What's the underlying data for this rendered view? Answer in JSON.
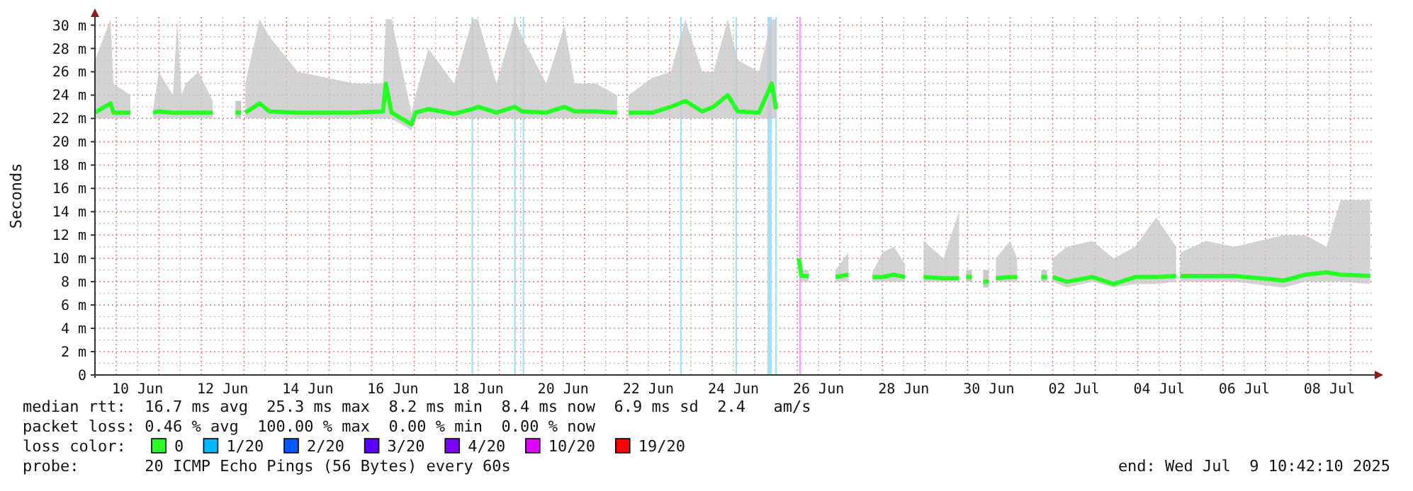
{
  "chart_data": {
    "type": "line",
    "ylabel": "Seconds",
    "legend_title": "loss color:",
    "legend": "bottom",
    "grid": true,
    "line_style": "solid",
    "marker": "none",
    "xlim": [
      "2025-06-09T12:00",
      "2025-07-09T12:00"
    ],
    "xticks": [
      {
        "value": "2025-06-10T12:00",
        "label": "10 Jun"
      },
      {
        "value": "2025-06-12T12:00",
        "label": "12 Jun"
      },
      {
        "value": "2025-06-14T12:00",
        "label": "14 Jun"
      },
      {
        "value": "2025-06-16T12:00",
        "label": "16 Jun"
      },
      {
        "value": "2025-06-18T12:00",
        "label": "18 Jun"
      },
      {
        "value": "2025-06-20T12:00",
        "label": "20 Jun"
      },
      {
        "value": "2025-06-22T12:00",
        "label": "22 Jun"
      },
      {
        "value": "2025-06-24T12:00",
        "label": "24 Jun"
      },
      {
        "value": "2025-06-26T12:00",
        "label": "26 Jun"
      },
      {
        "value": "2025-06-28T12:00",
        "label": "28 Jun"
      },
      {
        "value": "2025-06-30T12:00",
        "label": "30 Jun"
      },
      {
        "value": "2025-07-02T12:00",
        "label": "02 Jul"
      },
      {
        "value": "2025-07-04T12:00",
        "label": "04 Jul"
      },
      {
        "value": "2025-07-06T12:00",
        "label": "06 Jul"
      },
      {
        "value": "2025-07-08T12:00",
        "label": "08 Jul"
      }
    ],
    "ylim": [
      0,
      30.7
    ],
    "yticks": [
      0,
      {
        "value": 2,
        "label": "2 m"
      },
      {
        "value": 4,
        "label": "4 m"
      },
      {
        "value": 6,
        "label": "6 m"
      },
      {
        "value": 8,
        "label": "8 m"
      },
      {
        "value": 10,
        "label": "10 m"
      },
      {
        "value": 12,
        "label": "12 m"
      },
      {
        "value": 14,
        "label": "14 m"
      },
      {
        "value": 16,
        "label": "16 m"
      },
      {
        "value": 18,
        "label": "18 m"
      },
      {
        "value": 20,
        "label": "20 m"
      },
      {
        "value": 22,
        "label": "22 m"
      },
      {
        "value": 24,
        "label": "24 m"
      },
      {
        "value": 26,
        "label": "26 m"
      },
      {
        "value": 28,
        "label": "28 m"
      },
      {
        "value": 30,
        "label": "30 m"
      }
    ],
    "series": [
      {
        "name": "0",
        "color": "#26ff26",
        "x": [
          "2025-06-09T12:00",
          "2025-06-09T20:48",
          "2025-06-09T22:24",
          "2025-06-10T08:00",
          "2025-06-10T12:00",
          "2025-06-10T20:48",
          "2025-06-11T00:00",
          "2025-06-11T08:00",
          "2025-06-11T10:24",
          "2025-06-11T12:48",
          "2025-06-11T15:12",
          "2025-06-11T22:24",
          "2025-06-12T06:24",
          "2025-06-12T12:00",
          "2025-06-12T20:48",
          "2025-06-12T22:00",
          "2025-06-13T00:48",
          "2025-06-13T08:48",
          "2025-06-13T14:24",
          "2025-06-14T06:24",
          "2025-06-14T22:24",
          "2025-06-15T14:24",
          "2025-06-16T06:24",
          "2025-06-16T08:00",
          "2025-06-16T11:12",
          "2025-06-16T22:24",
          "2025-06-17T00:48",
          "2025-06-17T08:00",
          "2025-06-17T22:24",
          "2025-06-18T08:48",
          "2025-06-18T12:00",
          "2025-06-18T22:24",
          "2025-06-19T08:48",
          "2025-06-19T12:48",
          "2025-06-20T02:24",
          "2025-06-20T12:48",
          "2025-06-20T18:24",
          "2025-06-21T06:24",
          "2025-06-21T18:24",
          "2025-06-21T21:00",
          "2025-06-22T00:48",
          "2025-06-22T14:24",
          "2025-06-23T00:48",
          "2025-06-23T08:48",
          "2025-06-23T18:24",
          "2025-06-24T00:48",
          "2025-06-24T08:48",
          "2025-06-24T14:24",
          "2025-06-25T02:24",
          "2025-06-25T09:36",
          "2025-06-25T12:00",
          "2025-06-25T18:00",
          "2025-06-26T00:48",
          "2025-06-26T02:24",
          "2025-06-26T06:24",
          "2025-06-26T15:00",
          "2025-06-26T21:36",
          "2025-06-27T04:48",
          "2025-06-27T12:00",
          "2025-06-27T18:24",
          "2025-06-28T00:00",
          "2025-06-28T06:24",
          "2025-06-28T12:48",
          "2025-06-28T18:00",
          "2025-06-28T23:12",
          "2025-06-29T10:24",
          "2025-06-29T19:12",
          "2025-06-29T21:00",
          "2025-06-30T00:48",
          "2025-06-30T03:00",
          "2025-06-30T10:24",
          "2025-06-30T12:00",
          "2025-06-30T16:00",
          "2025-07-01T00:00",
          "2025-07-01T04:00",
          "2025-07-01T12:00",
          "2025-07-01T19:12",
          "2025-07-01T20:30",
          "2025-07-02T00:00",
          "2025-07-02T08:00",
          "2025-07-02T22:24",
          "2025-07-03T10:24",
          "2025-07-03T22:24",
          "2025-07-04T10:24",
          "2025-07-04T21:36",
          "2025-07-04T22:30",
          "2025-07-05T00:00",
          "2025-07-05T14:24",
          "2025-07-06T06:24",
          "2025-07-07T10:24",
          "2025-07-07T22:24",
          "2025-07-08T10:24",
          "2025-07-08T18:24",
          "2025-07-09T11:00"
        ],
        "values": [
          22.5,
          23.3,
          22.5,
          22.5,
          null,
          22.5,
          22.6,
          22.5,
          22.5,
          22.5,
          22.5,
          22.5,
          22.5,
          null,
          22.5,
          null,
          22.5,
          23.3,
          22.6,
          22.5,
          22.5,
          22.5,
          22.6,
          25,
          22.5,
          21.5,
          22.5,
          22.8,
          22.4,
          22.8,
          23,
          22.5,
          23,
          22.6,
          22.5,
          23,
          22.6,
          22.6,
          22.5,
          null,
          22.5,
          22.5,
          23,
          23.5,
          22.6,
          23,
          24,
          22.6,
          22.5,
          25,
          22.8,
          null,
          10,
          8.5,
          8.5,
          null,
          8.4,
          8.6,
          null,
          8.4,
          8.4,
          8.6,
          8.4,
          null,
          8.4,
          8.3,
          8.3,
          null,
          8.4,
          null,
          8,
          null,
          8.3,
          8.4,
          8.4,
          null,
          8.4,
          null,
          8.4,
          8,
          8.4,
          7.8,
          8.4,
          8.4,
          8.5,
          null,
          8.5,
          8.5,
          8.5,
          8.1,
          8.6,
          8.8,
          8.6,
          8.5
        ],
        "lower": [
          22,
          22,
          22,
          22,
          null,
          22,
          22,
          22,
          22,
          22,
          22,
          22,
          22,
          null,
          22,
          null,
          22,
          22,
          22,
          22,
          22,
          22,
          22,
          22,
          22,
          21,
          22,
          22,
          22,
          22,
          22,
          22,
          22,
          22,
          22,
          22,
          22,
          22,
          22,
          null,
          22,
          22,
          22,
          22,
          22,
          22,
          22,
          22,
          22,
          22,
          22,
          null,
          8.5,
          8,
          8,
          null,
          8,
          8,
          null,
          8,
          8,
          8,
          8,
          null,
          8,
          8,
          8,
          null,
          8,
          null,
          7.5,
          null,
          8,
          8,
          8,
          null,
          8,
          null,
          8,
          7.5,
          8,
          7.5,
          7.8,
          7.8,
          8,
          null,
          8,
          8,
          8,
          7.5,
          8,
          8,
          8,
          7.8
        ],
        "upper": [
          27,
          30.5,
          25,
          24,
          null,
          22.8,
          26,
          24,
          30.5,
          24,
          25,
          26,
          23.5,
          null,
          23.5,
          null,
          25,
          30.5,
          29,
          26,
          25.5,
          25,
          25,
          30.5,
          30.5,
          22.5,
          24,
          28,
          25,
          30.5,
          30.5,
          25,
          30.5,
          29,
          25,
          30,
          25,
          25,
          24,
          null,
          24,
          25.5,
          26,
          30.5,
          26,
          26,
          30.5,
          27,
          26,
          30.5,
          30.5,
          null,
          10,
          9,
          9,
          null,
          9,
          10.5,
          null,
          8.8,
          10.5,
          11,
          9.5,
          null,
          11.5,
          10,
          14,
          null,
          9,
          null,
          9,
          null,
          10,
          11.5,
          10,
          null,
          9,
          null,
          10,
          11,
          11.5,
          10,
          11,
          13.5,
          11,
          null,
          10.5,
          11.5,
          11,
          12,
          12,
          11,
          15,
          15
        ]
      },
      {
        "name": "1/20",
        "color": "#00b8ff"
      },
      {
        "name": "2/20",
        "color": "#0059ff"
      },
      {
        "name": "3/20",
        "color": "#5e00ff"
      },
      {
        "name": "4/20",
        "color": "#7e00ff"
      },
      {
        "name": "10/20",
        "color": "#dd00ff"
      },
      {
        "name": "19/20",
        "color": "#ff0000"
      }
    ],
    "ref_lines": [
      {
        "axis": "x",
        "value": "2025-06-18T08:48",
        "color": "#a6e0f8"
      },
      {
        "axis": "x",
        "value": "2025-06-19T08:48",
        "color": "#a6e0f8"
      },
      {
        "axis": "x",
        "value": "2025-06-19T13:36",
        "color": "#a6e0f8"
      },
      {
        "axis": "x",
        "value": "2025-06-23T06:24",
        "color": "#a6e0f8"
      },
      {
        "axis": "x",
        "value": "2025-06-24T13:36",
        "color": "#a6e0f8"
      },
      {
        "axis": "x",
        "value": "2025-06-25T12:00",
        "color": "#a6e0f8"
      },
      {
        "axis": "x",
        "value": "2025-06-26T01:36",
        "color": "#f0a0ff"
      }
    ],
    "bands": [
      {
        "axis": "x",
        "from": "2025-06-25T07:12",
        "to": "2025-06-25T09:36",
        "color": "#a6e0f8"
      }
    ],
    "annotations": [
      "median rtt:  16.7 ms avg  25.3 ms max  8.2 ms min  8.4 ms now  6.9 ms sd  2.4   am/s",
      "packet loss: 0.46 % avg  100.00 % max  0.00 % min  0.00 % now",
      "probe:       20 ICMP Echo Pings (56 Bytes) every 60s",
      "end: Wed Jul  9 10:42:10 2025"
    ]
  }
}
